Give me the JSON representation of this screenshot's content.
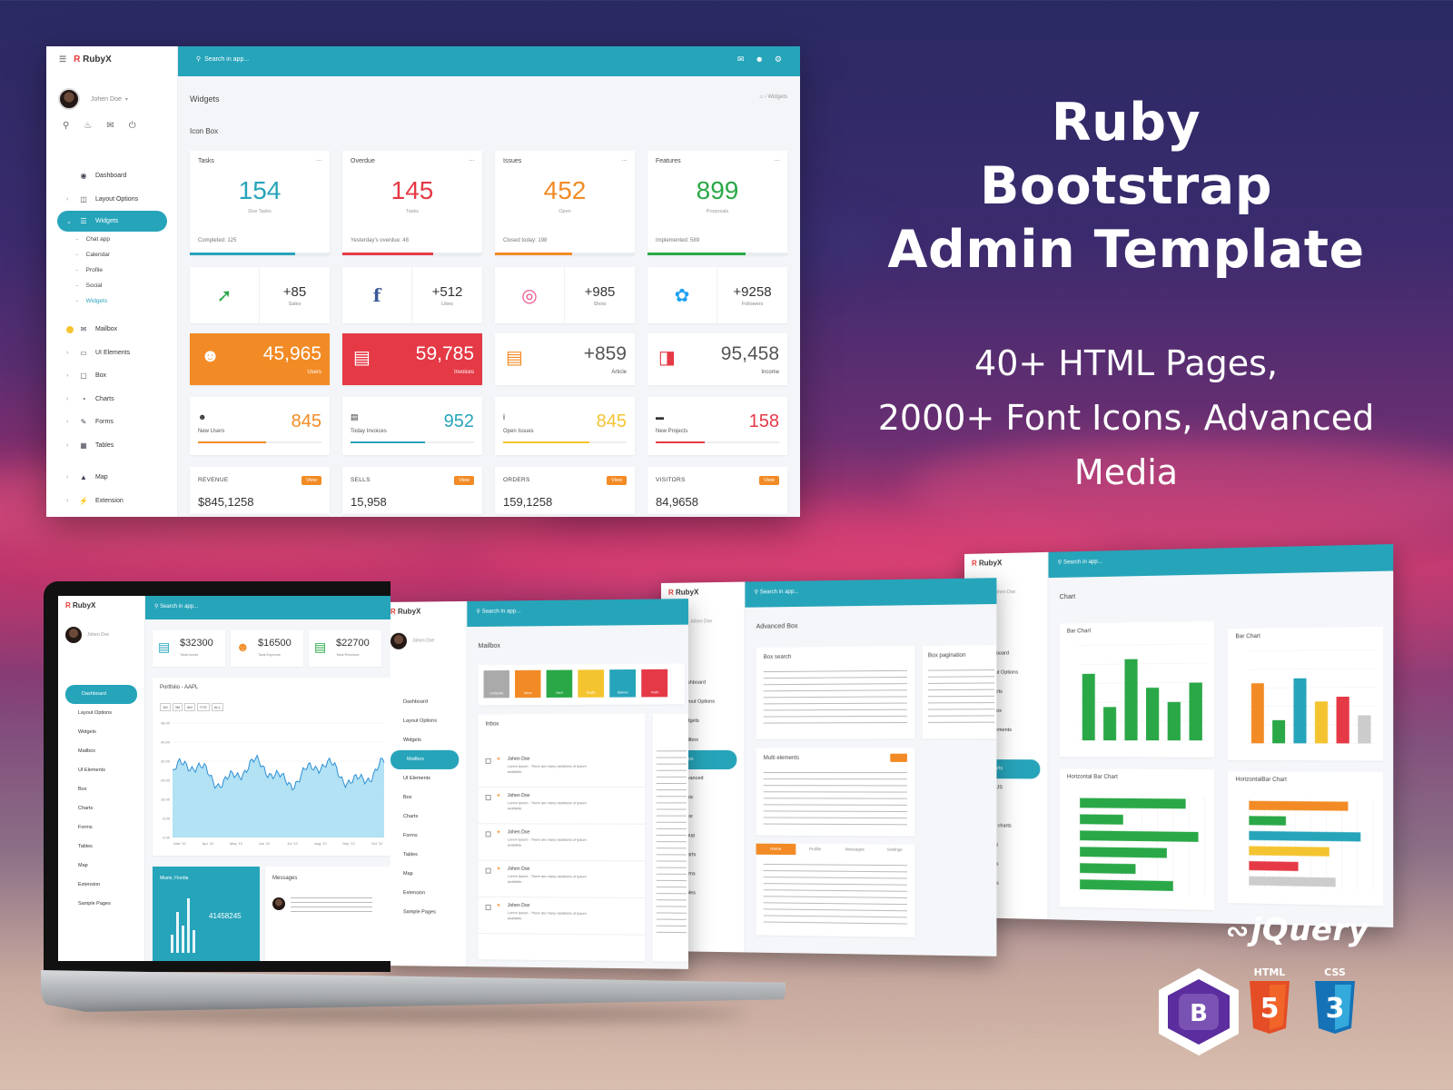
{
  "headline": {
    "line1": "Ruby",
    "line2": "Bootstrap",
    "line3": "Admin Template",
    "tagline1": "40+ HTML Pages,",
    "tagline2": "2000+ Font Icons, Advanced Media"
  },
  "brand": {
    "logo_letter": "R",
    "logo_text": "RubyX"
  },
  "main_screen": {
    "search_placeholder": "Search in app...",
    "user_name": "Johen Doe",
    "page_title": "Widgets",
    "breadcrumb_current": "Widgets",
    "section_title": "Icon Box",
    "nav": [
      {
        "label": "Dashboard",
        "icon": "dashboard-icon"
      },
      {
        "label": "Layout Options",
        "icon": "layout-icon"
      },
      {
        "label": "Widgets",
        "icon": "list-icon",
        "active": true
      },
      {
        "label": "Mailbox",
        "icon": "mail-icon"
      },
      {
        "label": "UI Elements",
        "icon": "laptop-icon"
      },
      {
        "label": "Box",
        "icon": "box-icon"
      },
      {
        "label": "Charts",
        "icon": "pie-icon"
      },
      {
        "label": "Forms",
        "icon": "edit-icon"
      },
      {
        "label": "Tables",
        "icon": "table-icon"
      },
      {
        "label": "Map",
        "icon": "map-icon"
      },
      {
        "label": "Extension",
        "icon": "plug-icon"
      }
    ],
    "subnav": [
      "Chat app",
      "Calendar",
      "Profile",
      "Social",
      "Widgets"
    ],
    "stat_cards": [
      {
        "label": "Tasks",
        "value": "154",
        "sub": "Due Tasks",
        "foot": "Completed: 125",
        "color": "#26a4ba",
        "progress": 0.75
      },
      {
        "label": "Overdue",
        "value": "145",
        "sub": "Tasks",
        "foot": "Yesterday's overdue: 48",
        "color": "#e53946",
        "progress": 0.65
      },
      {
        "label": "Issues",
        "value": "452",
        "sub": "Open",
        "foot": "Closed today: 198",
        "color": "#f28b25",
        "progress": 0.55
      },
      {
        "label": "Features",
        "value": "899",
        "sub": "Proposals",
        "foot": "Implemented: 589",
        "color": "#2aa847",
        "progress": 0.7
      }
    ],
    "social_cards": [
      {
        "value": "+85",
        "label": "Sales",
        "icon": "trending-up-icon",
        "color": "#2aa847"
      },
      {
        "value": "+512",
        "label": "Likes",
        "icon": "facebook-icon",
        "color": "#3b5998"
      },
      {
        "value": "+985",
        "label": "Shots",
        "icon": "dribbble-icon",
        "color": "#ea4c89"
      },
      {
        "value": "+9258",
        "label": "Followers",
        "icon": "twitter-icon",
        "color": "#1da1f2"
      }
    ],
    "color_cards": [
      {
        "value": "45,965",
        "label": "Users",
        "icon": "user-icon",
        "bg": "#f28b25",
        "fg": "#ffffff"
      },
      {
        "value": "59,785",
        "label": "Invoices",
        "icon": "document-icon",
        "bg": "#e53946",
        "fg": "#ffffff"
      },
      {
        "value": "+859",
        "label": "Article",
        "icon": "article-icon",
        "bg": "#ffffff",
        "fg": "#555555",
        "icon_color": "#f28b25"
      },
      {
        "value": "95,458",
        "label": "Income",
        "icon": "briefcase-icon",
        "bg": "#ffffff",
        "fg": "#555555",
        "icon_color": "#e53946"
      }
    ],
    "mini_cards": [
      {
        "value": "845",
        "label": "New Users",
        "icon": "user-icon",
        "color": "#f28b25",
        "progress": 0.55
      },
      {
        "value": "952",
        "label": "Today Invoices",
        "icon": "document-icon",
        "color": "#26a4ba",
        "progress": 0.6
      },
      {
        "value": "845",
        "label": "Open Issues",
        "icon": "info-icon",
        "color": "#f4c430",
        "progress": 0.7
      },
      {
        "value": "158",
        "label": "New Projects",
        "icon": "folder-icon",
        "color": "#e53946",
        "progress": 0.4
      }
    ],
    "rev_cards": [
      {
        "label": "REVENUE",
        "value": "$845,1258",
        "button": "View"
      },
      {
        "label": "SELLS",
        "value": "15,958",
        "button": "View"
      },
      {
        "label": "ORDERS",
        "value": "159,1258",
        "button": "View"
      },
      {
        "label": "VISITORS",
        "value": "84,9658",
        "button": "View"
      }
    ]
  },
  "laptop_screen": {
    "search_placeholder": "Search in app...",
    "user_name": "Johen Doe",
    "stat1": "$32300",
    "stat1_label": "Total invest",
    "stat2": "$16500",
    "stat2_label": "Total Expence",
    "stat3": "$22700",
    "stat3_label": "Total Revenue",
    "chart_title": "Portfolio - AAPL",
    "range_buttons": [
      "1M",
      "3M",
      "6M",
      "YTD",
      "ALL"
    ],
    "x_ticks": [
      "Mar '12",
      "Apr '12",
      "May '12",
      "Jun '12",
      "Jul '12",
      "Aug '12",
      "Sep '12",
      "Oct '12"
    ],
    "y_ticks": [
      "48.00",
      "40.00",
      "32.00",
      "24.00",
      "16.00",
      "8.00",
      "0.00"
    ],
    "location": "Miami, Florida",
    "location_value": "41458245",
    "messages_title": "Messages",
    "nav": [
      "Dashboard",
      "Layout Options",
      "Widgets",
      "Mailbox",
      "UI Elements",
      "Box",
      "Charts",
      "Forms",
      "Tables",
      "Map",
      "Extension",
      "Sample Pages"
    ]
  },
  "mailbox_screen": {
    "title": "Mailbox",
    "inbox_title": "Inbox",
    "search_placeholder": "Search in app...",
    "user_name": "Johen Doe",
    "action_buttons": [
      {
        "label": "Compose",
        "color": "#aaaaaa"
      },
      {
        "label": "Inbox",
        "color": "#f28b25"
      },
      {
        "label": "Sent",
        "color": "#2aa847"
      },
      {
        "label": "Drafts",
        "color": "#f4c430"
      },
      {
        "label": "Starred",
        "color": "#26a4ba"
      },
      {
        "label": "Trash",
        "color": "#e53946"
      }
    ],
    "mail_sender": "Johen Doe",
    "mail_preview": "Lorem Ipsum - There are many variations of Ipsum available.",
    "nav": [
      "Dashboard",
      "Layout Options",
      "Widgets",
      "Mailbox",
      "UI Elements",
      "Box",
      "Charts",
      "Forms",
      "Tables",
      "Map",
      "Extension",
      "Sample Pages"
    ]
  },
  "box_screen": {
    "title": "Advanced Box",
    "search_placeholder": "Search in app...",
    "user_name": "Johen Doe",
    "box_search": "Box search",
    "box_pagination": "Box pagination",
    "multi_elements": "Multi elements",
    "tabs": [
      "Home",
      "Profile",
      "Messages",
      "Settings"
    ],
    "nav": [
      "Dashboard",
      "Layout Options",
      "Widgets",
      "Mailbox",
      "Box",
      "Advanced",
      "Basic",
      "Color",
      "Group",
      "Charts",
      "Forms",
      "Tables"
    ]
  },
  "chart_screen": {
    "title": "Chart",
    "search_placeholder": "Search in app...",
    "user_name": "Johen Doe",
    "bar_chart_1": "Bar Chart",
    "bar_chart_2": "Bar Chart",
    "hbar_chart_1": "Horizontal Bar Chart",
    "hbar_chart_2": "HorizontalBar Chart",
    "bar1_values": [
      70,
      35,
      85,
      55,
      40,
      60
    ],
    "bar2_values": [
      65,
      25,
      70,
      45,
      50,
      30
    ],
    "bar2_colors": [
      "#f28b25",
      "#2aa847",
      "#26a4ba",
      "#f4c430",
      "#e53946",
      "#cccccc"
    ],
    "hbar1_values": [
      85,
      35,
      95,
      70,
      45,
      75
    ],
    "hbar2_values": [
      80,
      30,
      90,
      65,
      40,
      70
    ],
    "hbar2_colors": [
      "#f28b25",
      "#2aa847",
      "#26a4ba",
      "#f4c430",
      "#e53946",
      "#cccccc"
    ],
    "nav": [
      "Dashboard",
      "Layout Options",
      "Widgets",
      "Mailbox",
      "UI Elements",
      "Box",
      "Charts",
      "ChartJS",
      "Flot",
      "Inline charts",
      "Morris",
      "Forms",
      "Tables"
    ]
  },
  "tech": {
    "jquery": "jQuery",
    "html": "HTML",
    "css": "CSS",
    "html_num": "5",
    "css_num": "3",
    "bootstrap_letter": "B"
  }
}
